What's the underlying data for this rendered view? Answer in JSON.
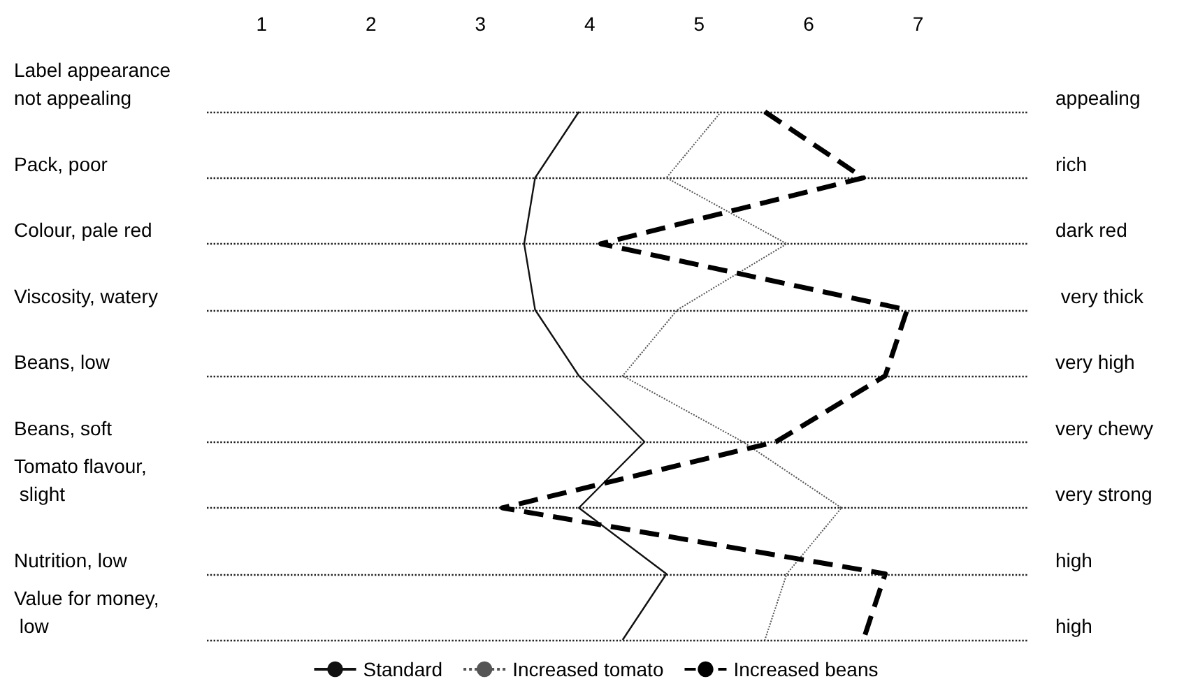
{
  "chart_data": {
    "type": "line",
    "orientation": "horizontal",
    "categories": [
      "Label appearance\nnot appealing",
      "Pack, poor",
      "Colour, pale red",
      "Viscosity, watery",
      "Beans, low",
      "Beans, soft",
      "Tomato flavour,\n slight",
      "Nutrition, low",
      "Value for money,\n low"
    ],
    "y2_categories": [
      "appealing",
      "rich",
      "dark red",
      " very thick",
      "very high",
      "very chewy",
      "very strong",
      "high",
      "high"
    ],
    "xlim": [
      0.5,
      8
    ],
    "xticks": [
      1,
      2,
      3,
      4,
      5,
      6,
      7
    ],
    "series": [
      {
        "name": "Standard",
        "color": "#111111",
        "line_style": "solid",
        "values": [
          3.9,
          3.5,
          3.4,
          3.5,
          3.9,
          4.5,
          3.9,
          4.7,
          4.3
        ]
      },
      {
        "name": "Increased tomato",
        "color": "#555555",
        "line_style": "dotted",
        "values": [
          5.2,
          4.7,
          5.8,
          4.8,
          4.3,
          5.4,
          6.3,
          5.8,
          5.6
        ]
      },
      {
        "name": "Increased beans",
        "color": "#000000",
        "line_style": "dashed",
        "values": [
          5.6,
          6.5,
          4.1,
          6.9,
          6.7,
          5.7,
          3.2,
          6.7,
          6.5
        ]
      }
    ],
    "grid": "y",
    "legend": "bottom",
    "marker": "none"
  }
}
